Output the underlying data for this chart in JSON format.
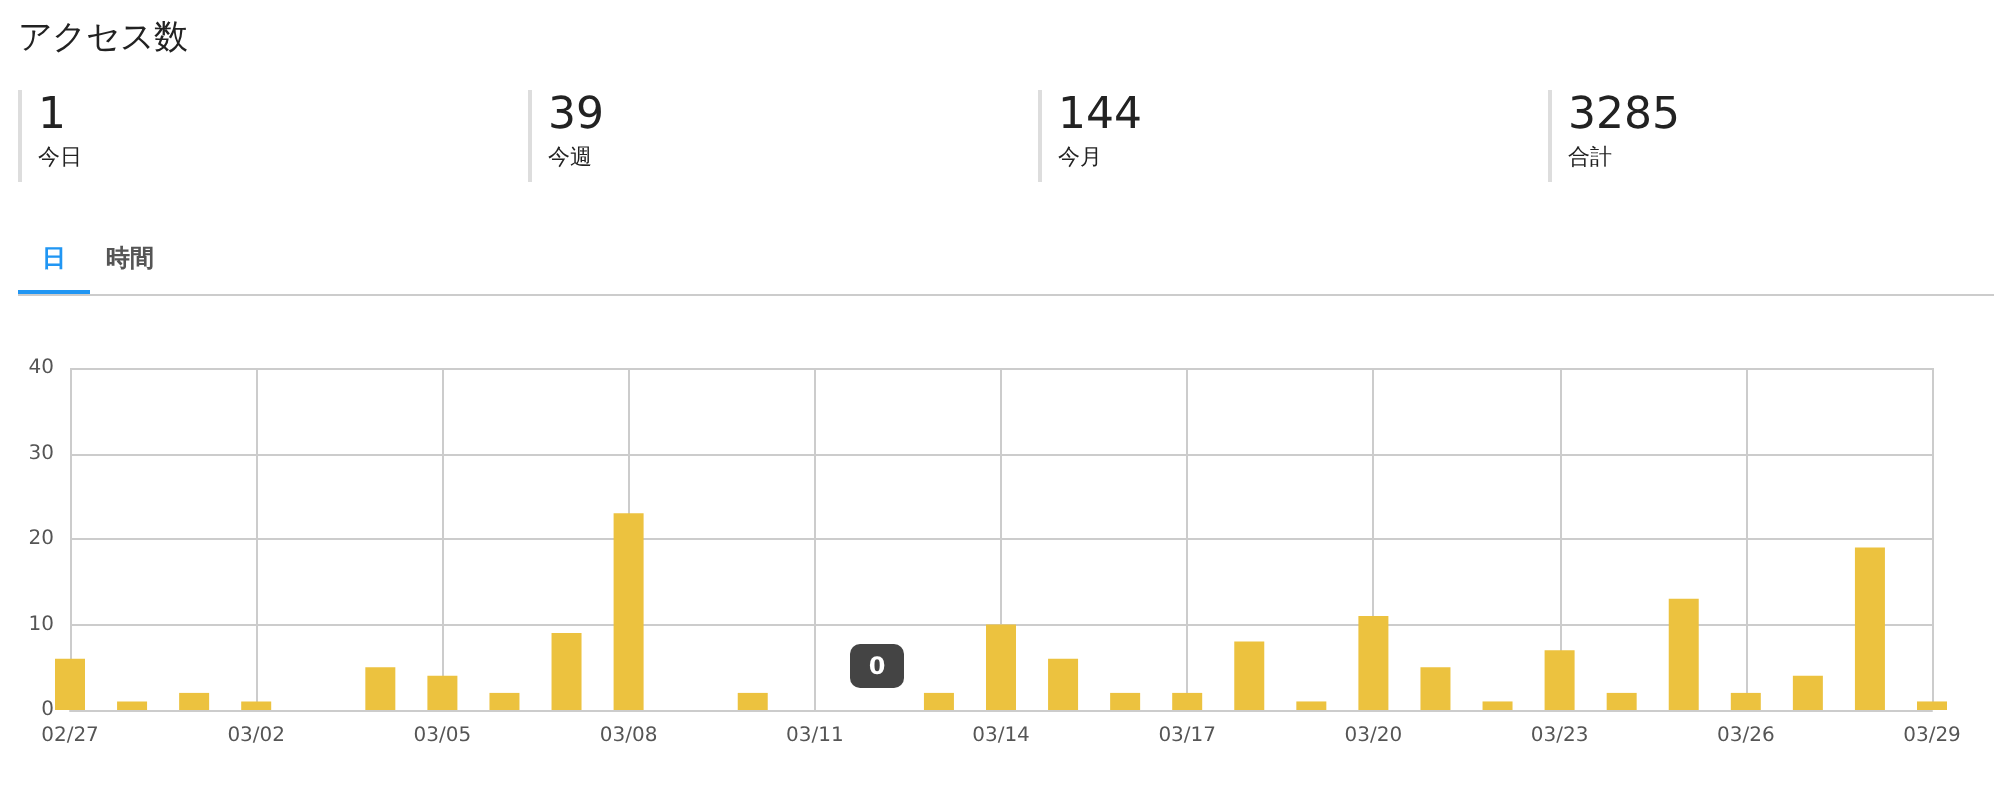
{
  "chart_data": [
    {
      "type": "other",
      "title": "アクセス数",
      "annotations": [
        "1",
        "今日",
        "39",
        "今週",
        "144",
        "今月",
        "3285",
        "合計",
        "日",
        "時間"
      ]
    },
    {
      "type": "bar",
      "categories": [
        "02/27",
        null,
        null,
        "03/02",
        null,
        null,
        "03/05",
        null,
        null,
        "03/08",
        null,
        null,
        "03/11",
        null,
        null,
        "03/14",
        null,
        null,
        "03/17",
        null,
        null,
        "03/20",
        null,
        null,
        "03/23",
        null,
        null,
        "03/26",
        null,
        null,
        "03/29"
      ],
      "values": [
        6,
        1,
        2,
        1,
        0,
        5,
        4,
        2,
        9,
        23,
        0,
        2,
        0,
        0,
        2,
        10,
        6,
        2,
        2,
        8,
        1,
        11,
        5,
        1,
        7,
        2,
        13,
        2,
        4,
        19,
        1
      ],
      "color": "#ecc23f",
      "ylim": [
        0,
        40
      ],
      "yticks": [
        0,
        10,
        20,
        30,
        40
      ],
      "grid": true,
      "annotations": [
        "0"
      ]
    }
  ]
}
